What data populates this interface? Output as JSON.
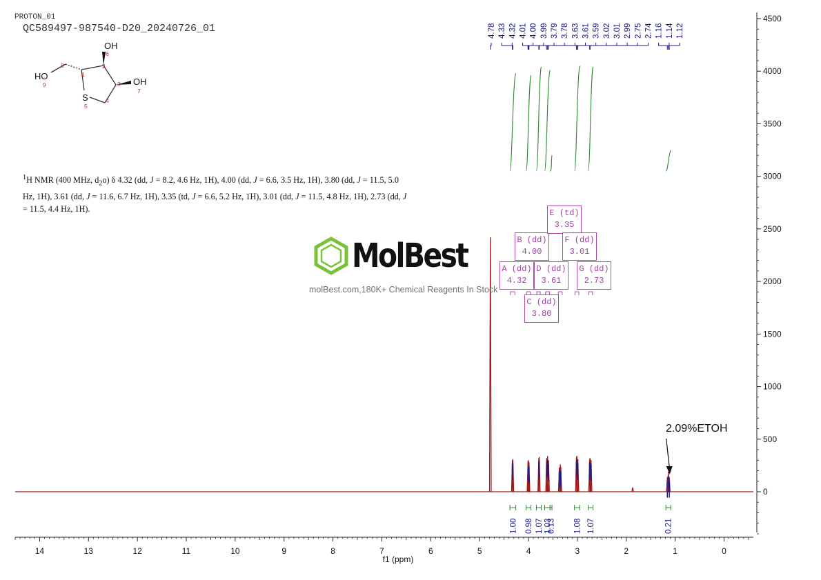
{
  "header": {
    "experiment": "PROTON_01",
    "sample_id": "QC589497-987540-D20_20240726_01"
  },
  "nmr_description_html": "<sup>1</sup>H NMR (400 MHz, d<sub>2</sub>o) δ 4.32 (dd, <i>J</i> = 8.2, 4.6 Hz, 1H), 4.00 (dd, <i>J</i> = 6.6, 3.5 Hz, 1H), 3.80 (dd, <i>J</i> = 11.5, 5.0 Hz, 1H), 3.61 (dd, <i>J</i> = 11.6, 6.7 Hz, 1H), 3.35 (td, <i>J</i> = 6.6, 5.2 Hz, 1H), 3.01 (dd, <i>J</i> = 11.5, 4.8 Hz, 1H), 2.73 (dd, <i>J</i> = 11.5, 4.4 Hz, 1H).",
  "molecule": {
    "atom_labels": [
      "HO",
      "OH",
      "OH",
      "S"
    ],
    "atom_numbers": [
      "1",
      "2",
      "3",
      "4",
      "5",
      "6",
      "7",
      "8",
      "9"
    ]
  },
  "watermark": {
    "brand": "MolBest",
    "tagline": "molBest.com,180K+ Chemical Reagents In Stock"
  },
  "annotation": {
    "text": "2.09%ETOH",
    "ppm": 1.14
  },
  "colors": {
    "spectrum": "#a01818",
    "integral": "#2a8a2a",
    "peak_label": "#1a1a8c",
    "multiplet": "#b048b0",
    "axis": "#222222",
    "logo_green": "#7ac23a"
  },
  "chart_data": {
    "type": "line",
    "xlabel": "f1 (ppm)",
    "xlim": [
      14.5,
      -0.6
    ],
    "x_ticks": [
      14,
      13,
      12,
      11,
      10,
      9,
      8,
      7,
      6,
      5,
      4,
      3,
      2,
      1,
      0
    ],
    "y_right_ticks": [
      4500,
      4000,
      3500,
      3000,
      2500,
      2000,
      1500,
      1000,
      500,
      0
    ],
    "y_right_minor_step": 100,
    "ylim": [
      -420,
      4580
    ],
    "peaks": [
      {
        "ppm": 4.78,
        "height": 2420
      },
      {
        "ppm": 4.33,
        "height": 300
      },
      {
        "ppm": 4.32,
        "height": 310
      },
      {
        "ppm": 4.01,
        "height": 290
      },
      {
        "ppm": 4.0,
        "height": 300
      },
      {
        "ppm": 3.99,
        "height": 280
      },
      {
        "ppm": 3.79,
        "height": 320
      },
      {
        "ppm": 3.78,
        "height": 330
      },
      {
        "ppm": 3.63,
        "height": 320
      },
      {
        "ppm": 3.61,
        "height": 340
      },
      {
        "ppm": 3.59,
        "height": 300
      },
      {
        "ppm": 3.37,
        "height": 230
      },
      {
        "ppm": 3.35,
        "height": 260
      },
      {
        "ppm": 3.34,
        "height": 240
      },
      {
        "ppm": 3.02,
        "height": 330
      },
      {
        "ppm": 3.01,
        "height": 340
      },
      {
        "ppm": 2.99,
        "height": 310
      },
      {
        "ppm": 2.75,
        "height": 310
      },
      {
        "ppm": 2.74,
        "height": 320
      },
      {
        "ppm": 2.72,
        "height": 300
      },
      {
        "ppm": 1.16,
        "height": 140
      },
      {
        "ppm": 1.14,
        "height": 190
      },
      {
        "ppm": 1.12,
        "height": 140
      },
      {
        "ppm": 1.87,
        "height": 40
      }
    ],
    "peak_labels": [
      "4.78",
      "4.33",
      "4.32",
      "4.01",
      "4.00",
      "3.99",
      "3.79",
      "3.78",
      "3.63",
      "3.61",
      "3.59",
      "3.02",
      "3.01",
      "2.99",
      "2.75",
      "2.74",
      "1.16",
      "1.14",
      "1.12"
    ],
    "integrals": [
      {
        "from": 4.38,
        "to": 4.26,
        "value": "1.00",
        "curve": [
          3050,
          3980
        ]
      },
      {
        "from": 4.05,
        "to": 3.95,
        "value": "0.98",
        "curve": [
          3050,
          3960
        ]
      },
      {
        "from": 3.84,
        "to": 3.74,
        "value": "1.07",
        "curve": [
          3050,
          4040
        ]
      },
      {
        "from": 3.67,
        "to": 3.56,
        "value": "1.03",
        "curve": [
          3050,
          4010
        ]
      },
      {
        "from": 3.56,
        "to": 3.52,
        "value": "0.13",
        "curve": [
          3050,
          3200
        ]
      },
      {
        "from": 3.06,
        "to": 2.95,
        "value": "1.08",
        "curve": [
          3050,
          4050
        ]
      },
      {
        "from": 2.78,
        "to": 2.68,
        "value": "1.07",
        "curve": [
          3050,
          4040
        ]
      },
      {
        "from": 1.19,
        "to": 1.09,
        "value": "0.21",
        "curve": [
          3050,
          3250
        ]
      }
    ],
    "multiplets": [
      {
        "id": "A",
        "kind": "dd",
        "shift": "4.32",
        "range": [
          4.37,
          4.28
        ]
      },
      {
        "id": "B",
        "kind": "dd",
        "shift": "4.00",
        "range": [
          4.04,
          3.96
        ]
      },
      {
        "id": "C",
        "kind": "dd",
        "shift": "3.80",
        "range": [
          3.83,
          3.76
        ]
      },
      {
        "id": "D",
        "kind": "dd",
        "shift": "3.61",
        "range": [
          3.65,
          3.57
        ]
      },
      {
        "id": "E",
        "kind": "td",
        "shift": "3.35",
        "range": [
          3.39,
          3.31
        ]
      },
      {
        "id": "F",
        "kind": "dd",
        "shift": "3.01",
        "range": [
          3.05,
          2.97
        ]
      },
      {
        "id": "G",
        "kind": "dd",
        "shift": "2.73",
        "range": [
          2.77,
          2.69
        ]
      }
    ]
  }
}
